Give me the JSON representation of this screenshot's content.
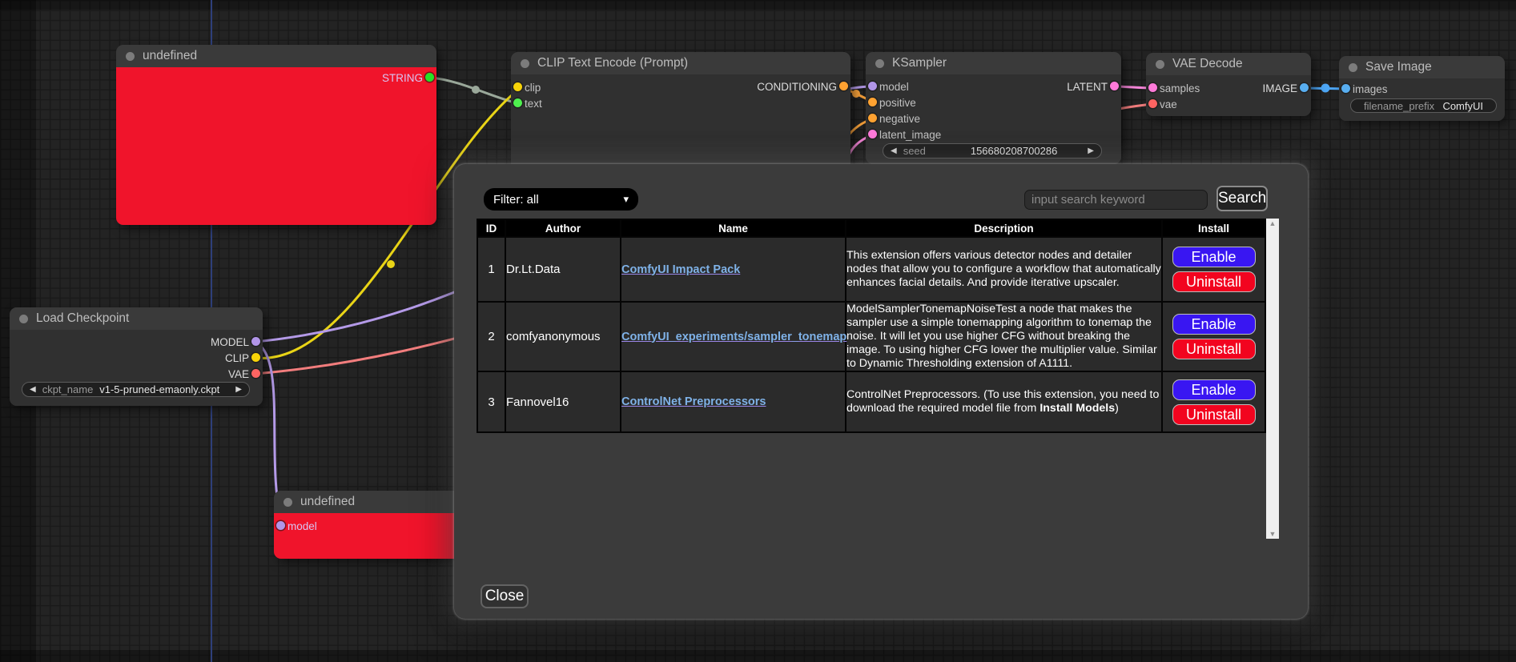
{
  "icons": {
    "decrement": "◀",
    "increment": "▶",
    "scroll_up": "▲",
    "scroll_down": "▼",
    "dropdown": "▾"
  },
  "colors": {
    "node_error_red": "#f0142b",
    "enable_button": "#3916f2",
    "uninstall_button": "#f2041f",
    "extension_link": "#7fb2e8",
    "wire_yellow": "#e9d416",
    "wire_purple": "#b49ae8",
    "wire_orange": "#f7a13b",
    "wire_pink": "#f585d8",
    "wire_salmon": "#f27d7d",
    "wire_blue": "#4da6f5",
    "wire_string": "#9aa89a"
  },
  "canvas": {
    "nodes": {
      "undefined_top": {
        "title": "undefined",
        "outputs": [
          "STRING"
        ]
      },
      "clip_text_encode": {
        "title": "CLIP Text Encode (Prompt)",
        "inputs": [
          "clip",
          "text"
        ],
        "outputs": [
          "CONDITIONING"
        ]
      },
      "ksampler": {
        "title": "KSampler",
        "inputs": [
          "model",
          "positive",
          "negative",
          "latent_image"
        ],
        "outputs": [
          "LATENT"
        ],
        "widget": {
          "name": "seed",
          "value": "156680208700286"
        }
      },
      "vae_decode": {
        "title": "VAE Decode",
        "inputs": [
          "samples",
          "vae"
        ],
        "outputs": [
          "IMAGE"
        ]
      },
      "save_image": {
        "title": "Save Image",
        "inputs": [
          "images"
        ],
        "widget": {
          "name": "filename_prefix",
          "value": "ComfyUI"
        }
      },
      "load_checkpoint": {
        "title": "Load Checkpoint",
        "outputs": [
          "MODEL",
          "CLIP",
          "VAE"
        ],
        "widget": {
          "name": "ckpt_name",
          "value": "v1-5-pruned-emaonly.ckpt"
        }
      },
      "undefined_bottom": {
        "title": "undefined",
        "inputs": [
          "model"
        ]
      }
    }
  },
  "modal": {
    "filter_label": "Filter: all",
    "search_placeholder": "input search keyword",
    "search_button": "Search",
    "close_button": "Close",
    "table": {
      "headers": [
        "ID",
        "Author",
        "Name",
        "Description",
        "Install"
      ],
      "rows": [
        {
          "id": "1",
          "author": "Dr.Lt.Data",
          "name": "ComfyUI Impact Pack",
          "description_parts": [
            {
              "text": "This extension offers various detector nodes and detailer nodes that allow you to configure a workflow that automatically enhances facial details. And provide iterative upscaler.",
              "bold": false
            }
          ],
          "buttons": [
            "Enable",
            "Uninstall"
          ]
        },
        {
          "id": "2",
          "author": "comfyanonymous",
          "name": "ComfyUI_experiments/sampler_tonemap",
          "description_parts": [
            {
              "text": "ModelSamplerTonemapNoiseTest a node that makes the sampler use a simple tonemapping algorithm to tonemap the noise. It will let you use higher CFG without breaking the image. To using higher CFG lower the multiplier value. Similar to Dynamic Thresholding extension of A1111.",
              "bold": false
            }
          ],
          "buttons": [
            "Enable",
            "Uninstall"
          ]
        },
        {
          "id": "3",
          "author": "Fannovel16",
          "name": "ControlNet Preprocessors",
          "description_parts": [
            {
              "text": "ControlNet Preprocessors. (To use this extension, you need to download the required model file from ",
              "bold": false
            },
            {
              "text": "Install Models",
              "bold": true
            },
            {
              "text": ")",
              "bold": false
            }
          ],
          "buttons": [
            "Enable",
            "Uninstall"
          ]
        }
      ]
    }
  }
}
